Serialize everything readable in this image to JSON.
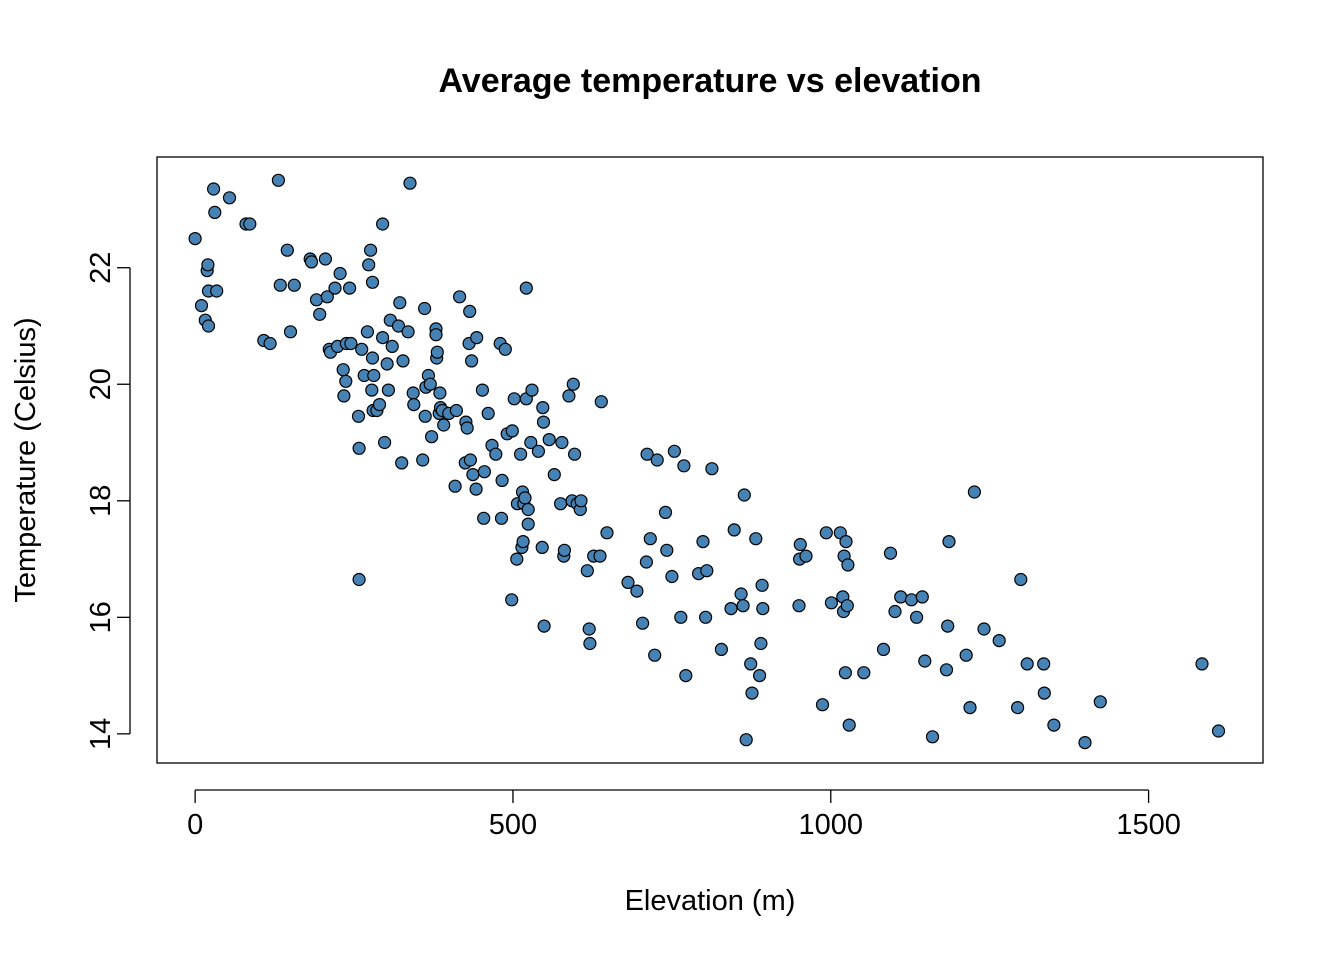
{
  "chart_data": {
    "type": "scatter",
    "title": "Average temperature vs elevation",
    "xlabel": "Elevation (m)",
    "ylabel": "Temperature (Celsius)",
    "xlim": [
      -60,
      1680
    ],
    "ylim": [
      13.5,
      23.9
    ],
    "x_ticks": [
      0,
      500,
      1000,
      1500
    ],
    "y_ticks": [
      14,
      16,
      18,
      20,
      22
    ],
    "grid": false,
    "legend": "none",
    "point_color": "#4682B4",
    "point_edge": "#000000",
    "points": [
      [
        0,
        22.5
      ],
      [
        10,
        21.35
      ],
      [
        16,
        21.1
      ],
      [
        19,
        21.95
      ],
      [
        20,
        22.05
      ],
      [
        21,
        21.6
      ],
      [
        21,
        21.0
      ],
      [
        29,
        23.35
      ],
      [
        31,
        22.95
      ],
      [
        34,
        21.6
      ],
      [
        54,
        23.2
      ],
      [
        80,
        22.75
      ],
      [
        86,
        22.75
      ],
      [
        108,
        20.75
      ],
      [
        118,
        20.7
      ],
      [
        131,
        23.5
      ],
      [
        134,
        21.7
      ],
      [
        145,
        22.3
      ],
      [
        150,
        20.9
      ],
      [
        156,
        21.7
      ],
      [
        181,
        22.15
      ],
      [
        183,
        22.1
      ],
      [
        191,
        21.45
      ],
      [
        196,
        21.2
      ],
      [
        205,
        22.15
      ],
      [
        208,
        21.5
      ],
      [
        211,
        20.6
      ],
      [
        213,
        20.55
      ],
      [
        220,
        21.65
      ],
      [
        224,
        20.65
      ],
      [
        228,
        21.9
      ],
      [
        233,
        20.25
      ],
      [
        234,
        19.8
      ],
      [
        237,
        20.05
      ],
      [
        238,
        20.7
      ],
      [
        243,
        21.65
      ],
      [
        245,
        20.7
      ],
      [
        257,
        19.45
      ],
      [
        258,
        18.9
      ],
      [
        258,
        16.65
      ],
      [
        262,
        20.6
      ],
      [
        266,
        20.15
      ],
      [
        271,
        20.9
      ],
      [
        273,
        22.05
      ],
      [
        276,
        22.3
      ],
      [
        278,
        19.9
      ],
      [
        279,
        20.45
      ],
      [
        279,
        21.75
      ],
      [
        280,
        19.55
      ],
      [
        281,
        20.15
      ],
      [
        286,
        19.55
      ],
      [
        290,
        19.65
      ],
      [
        295,
        22.75
      ],
      [
        295,
        20.8
      ],
      [
        298,
        19.0
      ],
      [
        302,
        20.35
      ],
      [
        304,
        19.9
      ],
      [
        307,
        21.1
      ],
      [
        310,
        20.65
      ],
      [
        320,
        21.0
      ],
      [
        322,
        21.4
      ],
      [
        325,
        18.65
      ],
      [
        327,
        20.4
      ],
      [
        335,
        20.9
      ],
      [
        338,
        23.45
      ],
      [
        343,
        19.85
      ],
      [
        344,
        19.65
      ],
      [
        358,
        18.7
      ],
      [
        361,
        21.3
      ],
      [
        362,
        19.45
      ],
      [
        363,
        19.95
      ],
      [
        367,
        20.15
      ],
      [
        370,
        20.0
      ],
      [
        372,
        19.1
      ],
      [
        379,
        20.95
      ],
      [
        379,
        20.85
      ],
      [
        380,
        20.45
      ],
      [
        381,
        20.55
      ],
      [
        384,
        19.5
      ],
      [
        385,
        19.85
      ],
      [
        386,
        19.6
      ],
      [
        389,
        19.55
      ],
      [
        391,
        19.3
      ],
      [
        399,
        19.5
      ],
      [
        409,
        18.25
      ],
      [
        411,
        19.55
      ],
      [
        416,
        21.5
      ],
      [
        425,
        18.65
      ],
      [
        426,
        19.35
      ],
      [
        428,
        19.25
      ],
      [
        431,
        20.7
      ],
      [
        432,
        21.25
      ],
      [
        433,
        18.7
      ],
      [
        435,
        20.4
      ],
      [
        437,
        18.45
      ],
      [
        442,
        18.2
      ],
      [
        443,
        20.8
      ],
      [
        452,
        19.9
      ],
      [
        454,
        17.7
      ],
      [
        455,
        18.5
      ],
      [
        461,
        19.5
      ],
      [
        467,
        18.95
      ],
      [
        473,
        18.8
      ],
      [
        480,
        20.7
      ],
      [
        482,
        17.7
      ],
      [
        483,
        18.35
      ],
      [
        488,
        20.6
      ],
      [
        491,
        19.15
      ],
      [
        498,
        16.3
      ],
      [
        499,
        19.2
      ],
      [
        502,
        19.75
      ],
      [
        506,
        17.0
      ],
      [
        507,
        17.95
      ],
      [
        512,
        18.8
      ],
      [
        514,
        17.2
      ],
      [
        515,
        18.15
      ],
      [
        516,
        17.3
      ],
      [
        517,
        17.95
      ],
      [
        519,
        18.05
      ],
      [
        521,
        21.65
      ],
      [
        521,
        19.75
      ],
      [
        524,
        17.85
      ],
      [
        524,
        17.6
      ],
      [
        528,
        19.0
      ],
      [
        530,
        19.9
      ],
      [
        540,
        18.85
      ],
      [
        546,
        17.2
      ],
      [
        547,
        19.6
      ],
      [
        548,
        19.35
      ],
      [
        549,
        15.85
      ],
      [
        557,
        19.05
      ],
      [
        565,
        18.45
      ],
      [
        575,
        17.95
      ],
      [
        577,
        19.0
      ],
      [
        580,
        17.05
      ],
      [
        581,
        17.15
      ],
      [
        588,
        19.8
      ],
      [
        593,
        18.0
      ],
      [
        595,
        20.0
      ],
      [
        597,
        18.8
      ],
      [
        601,
        17.95
      ],
      [
        606,
        17.85
      ],
      [
        607,
        18.0
      ],
      [
        617,
        16.8
      ],
      [
        620,
        15.8
      ],
      [
        621,
        15.55
      ],
      [
        627,
        17.05
      ],
      [
        637,
        17.05
      ],
      [
        639,
        19.7
      ],
      [
        648,
        17.45
      ],
      [
        681,
        16.6
      ],
      [
        695,
        16.45
      ],
      [
        704,
        15.9
      ],
      [
        710,
        16.95
      ],
      [
        711,
        18.8
      ],
      [
        716,
        17.35
      ],
      [
        723,
        15.35
      ],
      [
        727,
        18.7
      ],
      [
        740,
        17.8
      ],
      [
        742,
        17.15
      ],
      [
        750,
        16.7
      ],
      [
        754,
        18.85
      ],
      [
        764,
        16.0
      ],
      [
        769,
        18.6
      ],
      [
        772,
        15.0
      ],
      [
        792,
        16.75
      ],
      [
        799,
        17.3
      ],
      [
        803,
        16.0
      ],
      [
        805,
        16.8
      ],
      [
        813,
        18.55
      ],
      [
        828,
        15.45
      ],
      [
        843,
        16.15
      ],
      [
        848,
        17.5
      ],
      [
        859,
        16.4
      ],
      [
        862,
        16.2
      ],
      [
        864,
        18.1
      ],
      [
        867,
        13.9
      ],
      [
        874,
        15.2
      ],
      [
        876,
        14.7
      ],
      [
        882,
        17.35
      ],
      [
        888,
        15.0
      ],
      [
        890,
        15.55
      ],
      [
        892,
        16.55
      ],
      [
        893,
        16.15
      ],
      [
        950,
        16.2
      ],
      [
        951,
        17.0
      ],
      [
        952,
        17.25
      ],
      [
        961,
        17.05
      ],
      [
        987,
        14.5
      ],
      [
        993,
        17.45
      ],
      [
        1001,
        16.25
      ],
      [
        1015,
        17.45
      ],
      [
        1019,
        16.35
      ],
      [
        1020,
        16.1
      ],
      [
        1021,
        17.05
      ],
      [
        1023,
        15.05
      ],
      [
        1024,
        17.3
      ],
      [
        1026,
        16.2
      ],
      [
        1027,
        16.9
      ],
      [
        1029,
        14.15
      ],
      [
        1052,
        15.05
      ],
      [
        1083,
        15.45
      ],
      [
        1094,
        17.1
      ],
      [
        1101,
        16.1
      ],
      [
        1110,
        16.35
      ],
      [
        1127,
        16.3
      ],
      [
        1135,
        16.0
      ],
      [
        1144,
        16.35
      ],
      [
        1148,
        15.25
      ],
      [
        1160,
        13.95
      ],
      [
        1182,
        15.1
      ],
      [
        1184,
        15.85
      ],
      [
        1186,
        17.3
      ],
      [
        1213,
        15.35
      ],
      [
        1219,
        14.45
      ],
      [
        1226,
        18.15
      ],
      [
        1241,
        15.8
      ],
      [
        1265,
        15.6
      ],
      [
        1294,
        14.45
      ],
      [
        1299,
        16.65
      ],
      [
        1309,
        15.2
      ],
      [
        1335,
        15.2
      ],
      [
        1336,
        14.7
      ],
      [
        1351,
        14.15
      ],
      [
        1400,
        13.85
      ],
      [
        1424,
        14.55
      ],
      [
        1584,
        15.2
      ],
      [
        1610,
        14.05
      ]
    ]
  }
}
